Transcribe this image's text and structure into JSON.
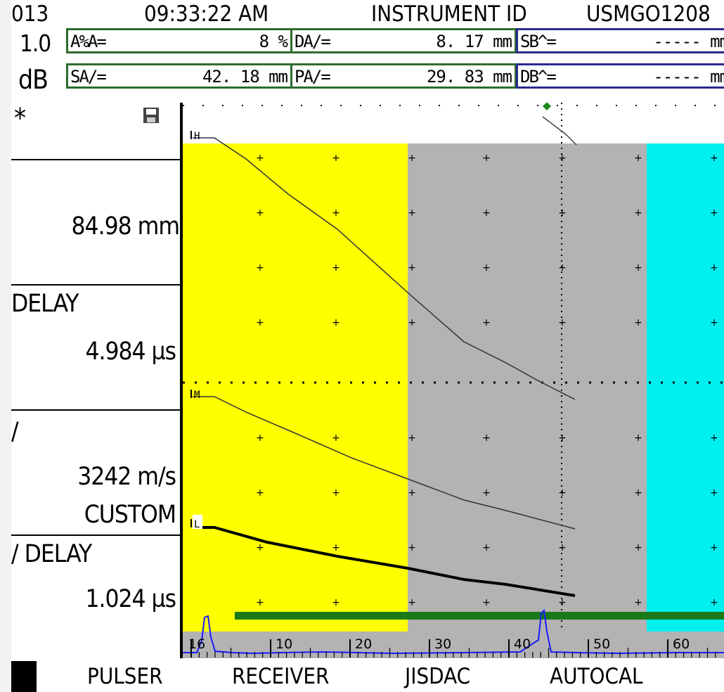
{
  "status_bar": {
    "date_fragment": "013",
    "time": "09:33:22 AM",
    "instrument_label": "INSTRUMENT ID",
    "instrument_id": "USMGO1208"
  },
  "left_top": {
    "gain_step": "1.0",
    "gain_unit": "dB"
  },
  "readings": [
    {
      "label": "A%A=",
      "value": "8 %"
    },
    {
      "label": "DA/=",
      "value": "8. 17  mm"
    },
    {
      "label": "SB^=",
      "value": "-----  mm"
    },
    {
      "label": "SA/=",
      "value": "42. 18  mm"
    },
    {
      "label": "PA/=",
      "value": "29. 83  mm"
    },
    {
      "label": "DB^=",
      "value": "-----  mm"
    }
  ],
  "left_panel": {
    "asterisk": "*",
    "range_value": "84.98 mm",
    "delay_label": "DELAY",
    "delay_value": "4.984 µs",
    "velocity_label": "/",
    "velocity_value": "3242 m/s",
    "velocity_mode": "CUSTOM",
    "probe_delay_label": "/ DELAY",
    "probe_delay_value": "1.024 µs"
  },
  "scan": {
    "curve_labels": [
      "H",
      "M",
      "L"
    ],
    "ruler_labels": [
      "16",
      "10",
      "20",
      "30",
      "40",
      "50",
      "60"
    ],
    "colors": {
      "yellow": "#ffff00",
      "gray": "#b3b3b3",
      "cyan": "#00f0f0",
      "gate": "#1a7a1a",
      "signal": "#1a1aff"
    }
  },
  "softkeys": [
    "PULSER",
    "RECEIVER",
    "JISDAC",
    "AUTOCAL"
  ]
}
